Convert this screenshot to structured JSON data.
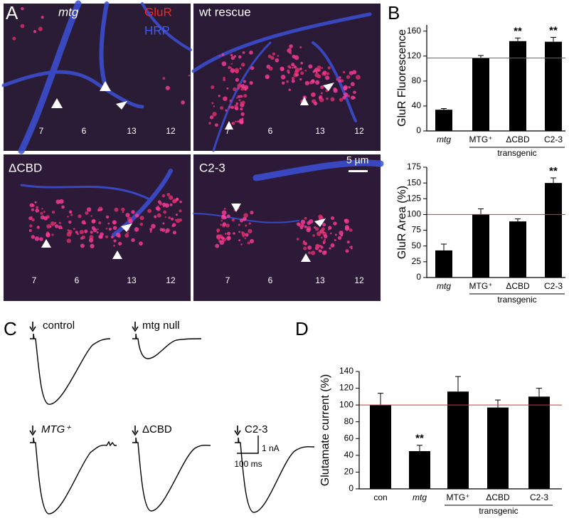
{
  "panel_a": {
    "letter": "A",
    "stain_1": "GluR",
    "stain_2": "HRP",
    "scale_bar": "5 µm",
    "images": [
      {
        "title": "mtg",
        "muscles": [
          "7",
          "6",
          "13",
          "12"
        ]
      },
      {
        "title": "wt rescue",
        "muscles": [
          "7",
          "6",
          "13",
          "12"
        ]
      },
      {
        "title": "ΔCBD",
        "muscles": [
          "7",
          "6",
          "13",
          "12"
        ]
      },
      {
        "title": "C2-3",
        "muscles": [
          "7",
          "6",
          "13",
          "12"
        ]
      }
    ]
  },
  "panel_b": {
    "letter": "B"
  },
  "panel_c": {
    "letter": "C",
    "traces": [
      "control",
      "mtg null",
      "MTG⁺",
      "ΔCBD",
      "C2-3"
    ],
    "scale_current": "1 nA",
    "scale_time": "100 ms"
  },
  "panel_d": {
    "letter": "D"
  },
  "chart_data": [
    {
      "type": "bar",
      "y_label": "GluR Fluorescence",
      "categories": [
        "mtg",
        "MTG⁺",
        "ΔCBD",
        "C2-3"
      ],
      "values": [
        34,
        117,
        144,
        143
      ],
      "errors": [
        2,
        4,
        5,
        7
      ],
      "significance": [
        null,
        null,
        "**",
        "**"
      ],
      "reference": 117,
      "reference_color": "#e03030",
      "color": "#000000",
      "group_label": "transgenic",
      "ylim": [
        0,
        170
      ],
      "yticks": [
        0,
        40,
        80,
        120,
        160
      ]
    },
    {
      "type": "bar",
      "y_label": "GluR Area (%)",
      "categories": [
        "mtg",
        "MTG⁺",
        "ΔCBD",
        "C2-3"
      ],
      "values": [
        43,
        100,
        89,
        150
      ],
      "errors": [
        10,
        9,
        4,
        8
      ],
      "significance": [
        null,
        null,
        null,
        "**"
      ],
      "reference": 100,
      "reference_color": "#e03030",
      "color": "#000000",
      "group_label": "transgenic",
      "ylim": [
        0,
        175
      ],
      "yticks": [
        0,
        25,
        50,
        75,
        100,
        125,
        150,
        175
      ]
    },
    {
      "type": "bar",
      "y_label": "Glutamate current (%)",
      "categories": [
        "con",
        "mtg",
        "MTG⁺",
        "ΔCBD",
        "C2-3"
      ],
      "values": [
        100,
        45,
        116,
        97,
        110
      ],
      "errors": [
        14,
        7,
        18,
        9,
        10
      ],
      "significance": [
        null,
        "**",
        null,
        null,
        null
      ],
      "reference": 100,
      "reference_color": "#e03030",
      "color": "#000000",
      "group_label": "transgenic",
      "ylim": [
        0,
        140
      ],
      "yticks": [
        0,
        20,
        40,
        60,
        80,
        100,
        120,
        140
      ]
    }
  ]
}
